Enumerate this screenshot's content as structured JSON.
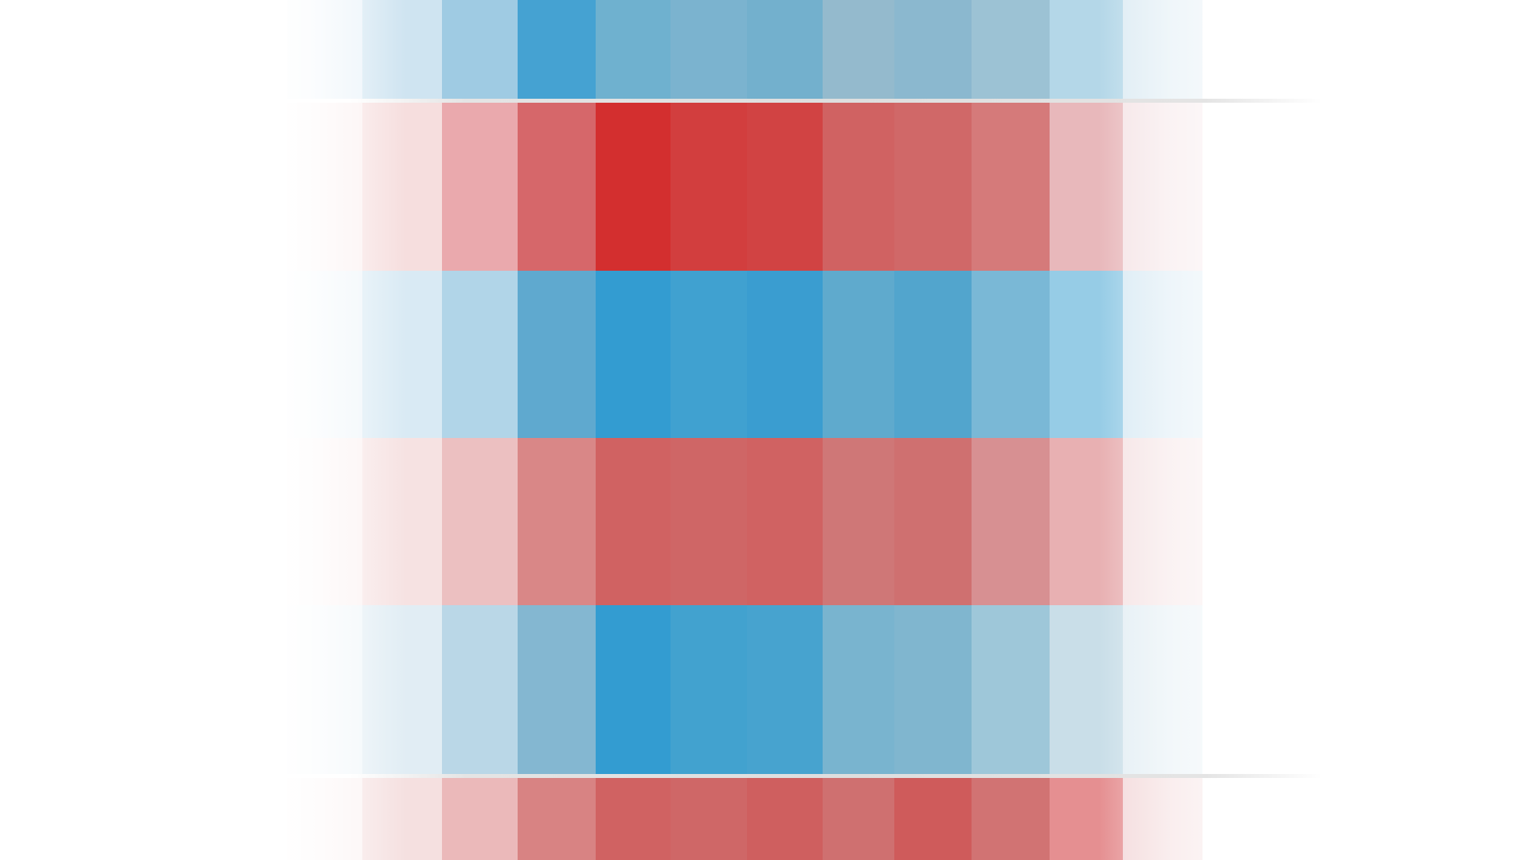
{
  "palette": {
    "blue_core": "#339cd1",
    "blue_mid": "#5eaad0",
    "blue_muted": "#8fb9cf",
    "red_core": "#d32f2f",
    "red_mid": "#d05c5c",
    "red_muted": "#cf7a7a",
    "background": "#ffffff",
    "divider": "#dedede"
  },
  "bands": [
    {
      "name": "band-blue-1",
      "hue": "blue",
      "cells": [
        "#e8f2f9",
        "#cfe4f1",
        "#9fcbe3",
        "#45a2d2",
        "#6fb1cf",
        "#7bb3cf",
        "#73b0cd",
        "#94bacd",
        "#8bb8cf",
        "#9cc2d4",
        "#b4d7e8",
        "#dcebf3"
      ]
    },
    {
      "name": "band-red-1",
      "hue": "red",
      "cells": [
        "#fbf0f0",
        "#f6dede",
        "#eaa9ad",
        "#d6676a",
        "#d32f2f",
        "#d23e3e",
        "#d14343",
        "#d06262",
        "#d06868",
        "#d57a7a",
        "#e8b8bb",
        "#f5e4e6"
      ]
    },
    {
      "name": "band-blue-2",
      "hue": "blue",
      "cells": [
        "#eef5fa",
        "#d9eaf4",
        "#b1d5e8",
        "#5fa9cf",
        "#339cd1",
        "#40a1d0",
        "#3a9dd0",
        "#5faacd",
        "#52a5cd",
        "#7ab8d6",
        "#96cce6",
        "#d9eaf4"
      ]
    },
    {
      "name": "band-red-2",
      "hue": "red",
      "cells": [
        "#fbf1f1",
        "#f6e2e2",
        "#ecc0c1",
        "#d98787",
        "#d06262",
        "#cf6666",
        "#d06262",
        "#cf7777",
        "#cf7070",
        "#d79092",
        "#e8b0b2",
        "#f5e3e4"
      ]
    },
    {
      "name": "band-blue-3",
      "hue": "blue",
      "cells": [
        "#f0f6fa",
        "#e1edf4",
        "#bad7e7",
        "#84b7d1",
        "#339cd1",
        "#42a2cf",
        "#47a3cf",
        "#79b4cf",
        "#80b6cf",
        "#9ec7d9",
        "#c9dee8",
        "#e3eef4"
      ]
    },
    {
      "name": "band-red-3",
      "hue": "red",
      "cells": [
        "#fbf2f2",
        "#f5e0e0",
        "#ebb9ba",
        "#d88383",
        "#d06262",
        "#cf6767",
        "#cf5f5f",
        "#cf7070",
        "#cf5b5b",
        "#d17373",
        "#e58f91",
        "#f3d9da"
      ]
    }
  ]
}
